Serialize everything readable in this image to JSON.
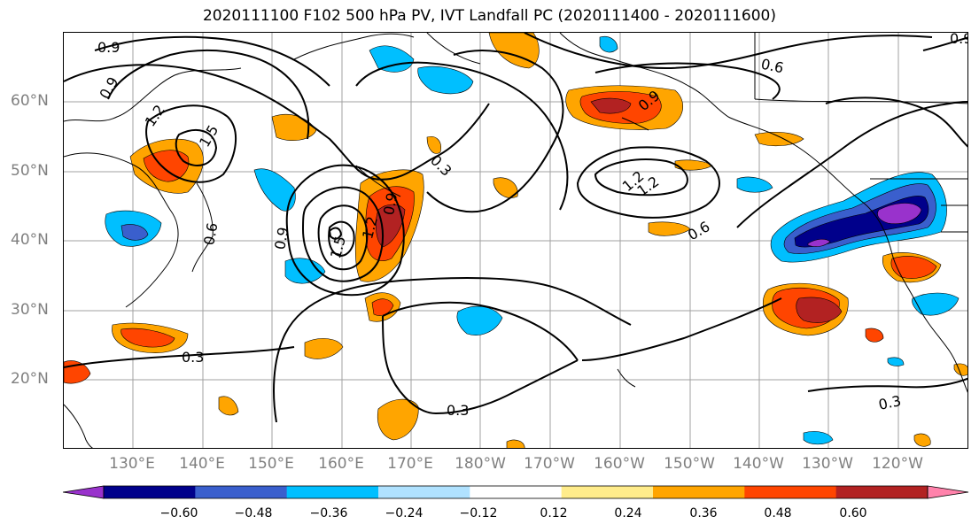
{
  "title": "2020111100 F102 500 hPa PV, IVT Landfall PC (2020111400 - 2020111600)",
  "lat_labels": [
    "60°N",
    "50°N",
    "40°N",
    "30°N",
    "20°N"
  ],
  "lon_labels": [
    "130°E",
    "140°E",
    "150°E",
    "160°E",
    "170°E",
    "180°W",
    "170°W",
    "160°W",
    "150°W",
    "140°W",
    "130°W",
    "120°W"
  ],
  "contour_labels": [
    "0.9",
    "0.9",
    "1.2",
    "1.5",
    "0.6",
    "0.9",
    "0.3",
    "0.9",
    "1.2",
    "0.9",
    "1.2",
    "0.6",
    "1.2",
    "1.5",
    "0.6",
    "0.9",
    "0.3",
    "0.3",
    "0.3"
  ],
  "colorbar": {
    "ticks": [
      "−0.60",
      "−0.48",
      "−0.36",
      "−0.24",
      "−0.12",
      "0.12",
      "0.24",
      "0.36",
      "0.48",
      "0.60"
    ],
    "colors": [
      "#9932cc",
      "#00008b",
      "#3a5fcd",
      "#00bfff",
      "#b0e2ff",
      "#ffffff",
      "#ffec8b",
      "#ffa500",
      "#ff4500",
      "#b22222",
      "#ff82ab"
    ]
  }
}
